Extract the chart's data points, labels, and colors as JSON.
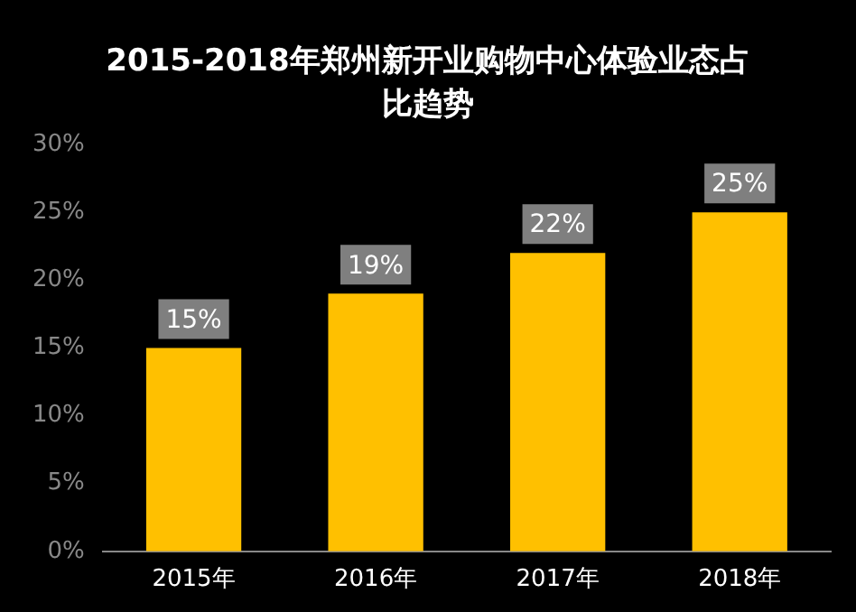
{
  "chart_data": {
    "type": "bar",
    "title": "2015-2018年郑州新开业购物中心体验业态占比趋势",
    "categories": [
      "2015年",
      "2016年",
      "2017年",
      "2018年"
    ],
    "values": [
      15,
      19,
      22,
      25
    ],
    "color": "#ffc000",
    "value_labels": [
      "15%",
      "19%",
      "22%",
      "25%"
    ],
    "ylim": [
      0,
      30
    ],
    "yticks": [
      {
        "value": 0,
        "label": "0%"
      },
      {
        "value": 5,
        "label": "5%"
      },
      {
        "value": 10,
        "label": "10%"
      },
      {
        "value": 15,
        "label": "15%"
      },
      {
        "value": 20,
        "label": "20%"
      },
      {
        "value": 25,
        "label": "25%"
      },
      {
        "value": 30,
        "label": "30%"
      }
    ],
    "grid": false,
    "legend": false
  }
}
